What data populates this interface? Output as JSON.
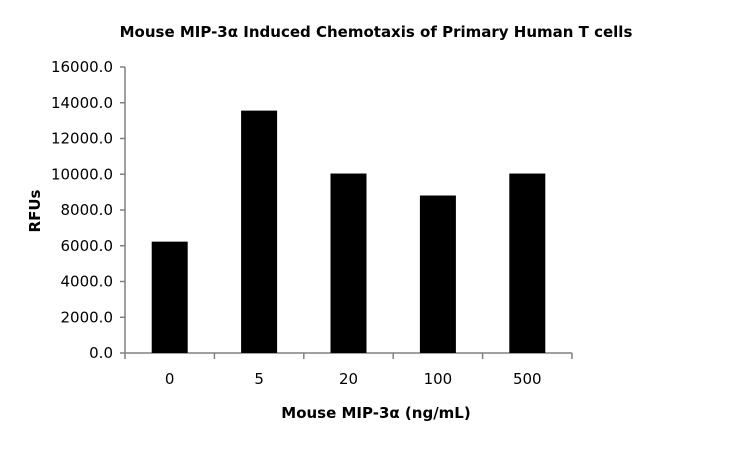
{
  "chart_data": {
    "type": "bar",
    "title": "Mouse MIP-3α Induced Chemotaxis of Primary Human T cells",
    "xlabel": "Mouse MIP-3α (ng/mL)",
    "ylabel": "RFUs",
    "categories": [
      "0",
      "5",
      "20",
      "100",
      "500"
    ],
    "values": [
      6230,
      13560,
      10040,
      8810,
      10040
    ],
    "ylim": [
      0,
      16000
    ],
    "yticks": [
      "0.0",
      "2000.0",
      "4000.0",
      "6000.0",
      "8000.0",
      "10000.0",
      "12000.0",
      "14000.0",
      "16000.0"
    ],
    "grid": false,
    "bar_color": "#000000",
    "axis_color": "#808080"
  }
}
